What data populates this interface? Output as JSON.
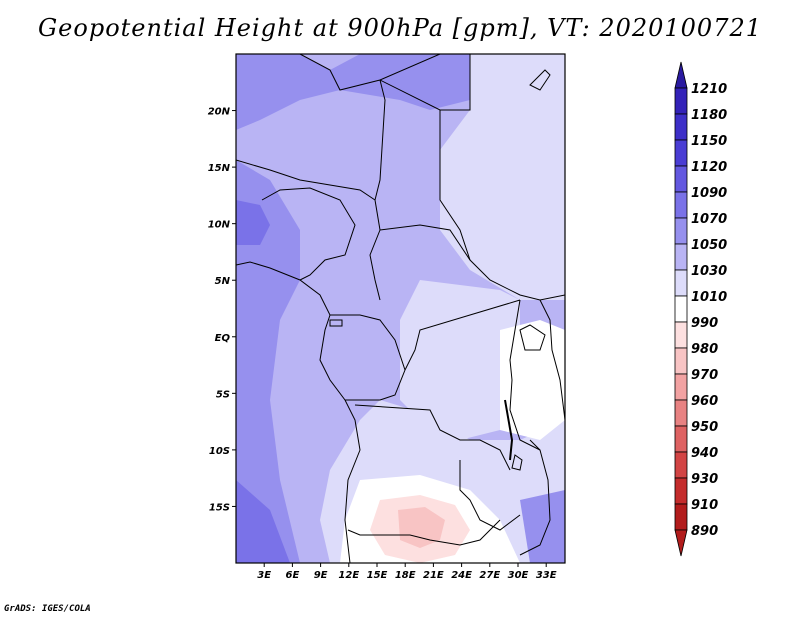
{
  "title": "Geopotential Height at 900hPa [gpm], VT: 2020100721",
  "credit": "GrADS: IGES/COLA",
  "map": {
    "lon_range": [
      0,
      35
    ],
    "lat_range": [
      -20,
      25
    ],
    "lat_ticks": [
      {
        "lat": 20,
        "label": "20N"
      },
      {
        "lat": 15,
        "label": "15N"
      },
      {
        "lat": 10,
        "label": "10N"
      },
      {
        "lat": 5,
        "label": "5N"
      },
      {
        "lat": 0,
        "label": "EQ"
      },
      {
        "lat": -5,
        "label": "5S"
      },
      {
        "lat": -10,
        "label": "10S"
      },
      {
        "lat": -15,
        "label": "15S"
      }
    ],
    "lon_ticks": [
      {
        "lon": 3,
        "label": "3E"
      },
      {
        "lon": 6,
        "label": "6E"
      },
      {
        "lon": 9,
        "label": "9E"
      },
      {
        "lon": 12,
        "label": "12E"
      },
      {
        "lon": 15,
        "label": "15E"
      },
      {
        "lon": 18,
        "label": "18E"
      },
      {
        "lon": 21,
        "label": "21E"
      },
      {
        "lon": 24,
        "label": "24E"
      },
      {
        "lon": 27,
        "label": "27E"
      },
      {
        "lon": 30,
        "label": "30E"
      },
      {
        "lon": 33,
        "label": "33E"
      }
    ]
  },
  "colorbar": {
    "labels": [
      "1210",
      "1180",
      "1150",
      "1120",
      "1090",
      "1070",
      "1050",
      "1030",
      "1010",
      "990",
      "980",
      "970",
      "960",
      "950",
      "940",
      "930",
      "910",
      "890"
    ],
    "colors": [
      "#2a1aa0",
      "#3322b8",
      "#3d2fc8",
      "#4a3dd4",
      "#6358e0",
      "#7a72e8",
      "#9690ee",
      "#b9b4f4",
      "#dddcfa",
      "#ffffff",
      "#fde0e0",
      "#f8c4c4",
      "#f2a2a2",
      "#e88282",
      "#de6262",
      "#d24444",
      "#c42c2c",
      "#b21c1c"
    ]
  }
}
